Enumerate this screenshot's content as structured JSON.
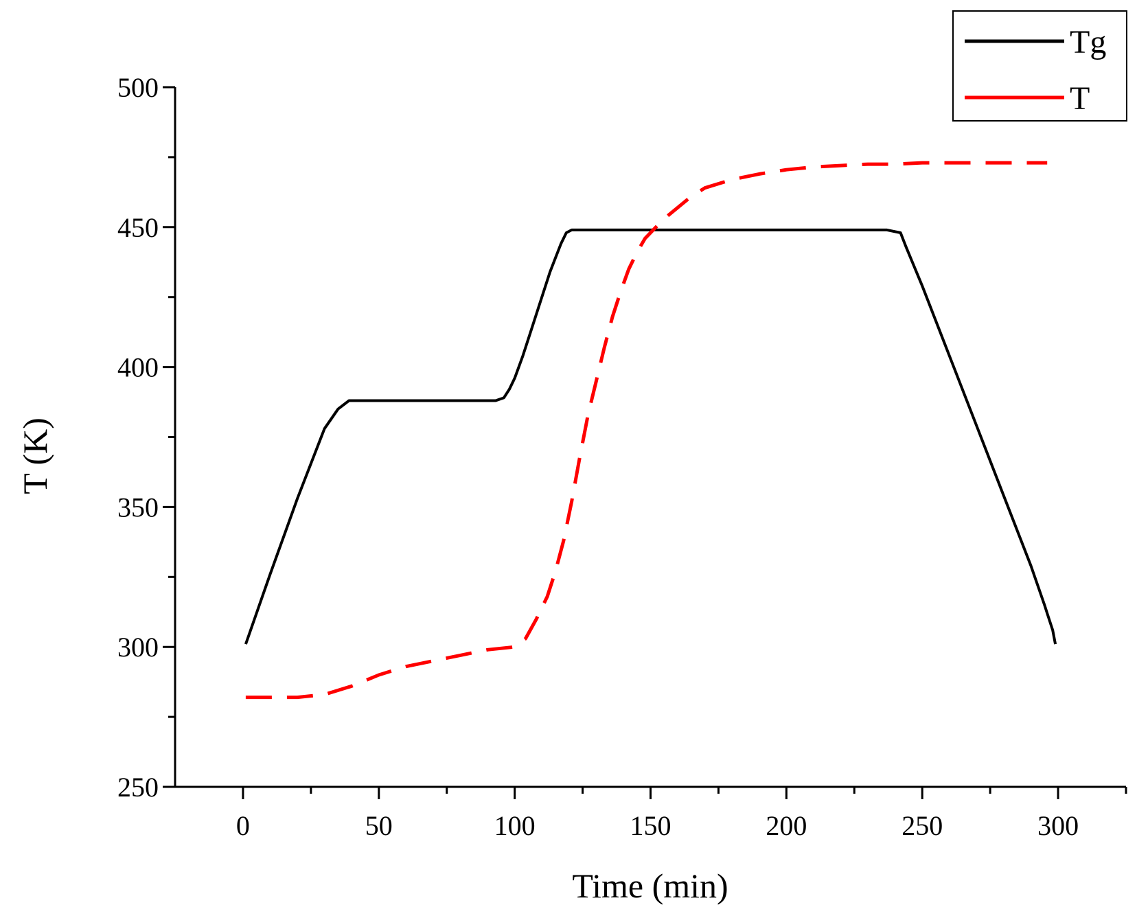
{
  "chart_data": {
    "type": "line",
    "title": "",
    "xlabel": "Time (min)",
    "ylabel": "T (K)",
    "xlim": [
      -25,
      325
    ],
    "ylim": [
      250,
      500
    ],
    "xticks": [
      0,
      50,
      100,
      150,
      200,
      250,
      300
    ],
    "xtick_labels": [
      "0",
      "50",
      "100",
      "150",
      "200",
      "250",
      "300"
    ],
    "yticks": [
      250,
      300,
      350,
      400,
      450,
      500
    ],
    "ytick_labels": [
      "250",
      "300",
      "350",
      "400",
      "450",
      "500"
    ],
    "grid": false,
    "legend_position": "top-right",
    "series": [
      {
        "name": "Tg",
        "color": "#000000",
        "style": "solid",
        "x": [
          1,
          10,
          20,
          30,
          35,
          39,
          41,
          45,
          55,
          70,
          80,
          90,
          93,
          96,
          98,
          100,
          103,
          106,
          110,
          113,
          115,
          117,
          119,
          121,
          125,
          126,
          130,
          150,
          175,
          200,
          212,
          225,
          237,
          242,
          244,
          250,
          260,
          270,
          280,
          290,
          295,
          296,
          298,
          299
        ],
        "values": [
          301,
          326,
          353,
          378,
          385,
          388,
          388,
          388,
          388,
          388,
          388,
          388,
          388,
          389,
          392,
          396,
          404,
          413,
          425,
          434,
          439,
          444,
          448,
          449,
          449,
          449,
          449,
          449,
          449,
          449,
          449,
          449,
          449,
          448,
          443,
          429,
          404,
          379,
          354,
          329,
          315,
          312,
          306,
          301
        ]
      },
      {
        "name": "T",
        "color": "#ff0000",
        "style": "dashed",
        "x": [
          1,
          10,
          20,
          30,
          40,
          50,
          60,
          70,
          80,
          90,
          100,
          104,
          108,
          112,
          115,
          118,
          121,
          124,
          127,
          130,
          133,
          136,
          139,
          142,
          145,
          148,
          152,
          155,
          160,
          165,
          170,
          180,
          190,
          200,
          210,
          220,
          230,
          240,
          250,
          260,
          270,
          280,
          290,
          296
        ],
        "values": [
          282,
          282,
          282,
          283,
          286,
          290,
          293,
          295,
          297,
          299,
          300,
          303,
          310,
          318,
          327,
          338,
          352,
          368,
          383,
          395,
          407,
          418,
          427,
          435,
          441,
          446,
          450,
          453,
          457,
          461,
          464,
          467,
          469,
          470.5,
          471.5,
          472,
          472.5,
          472.5,
          473,
          473,
          473,
          473,
          473,
          473
        ]
      }
    ]
  }
}
